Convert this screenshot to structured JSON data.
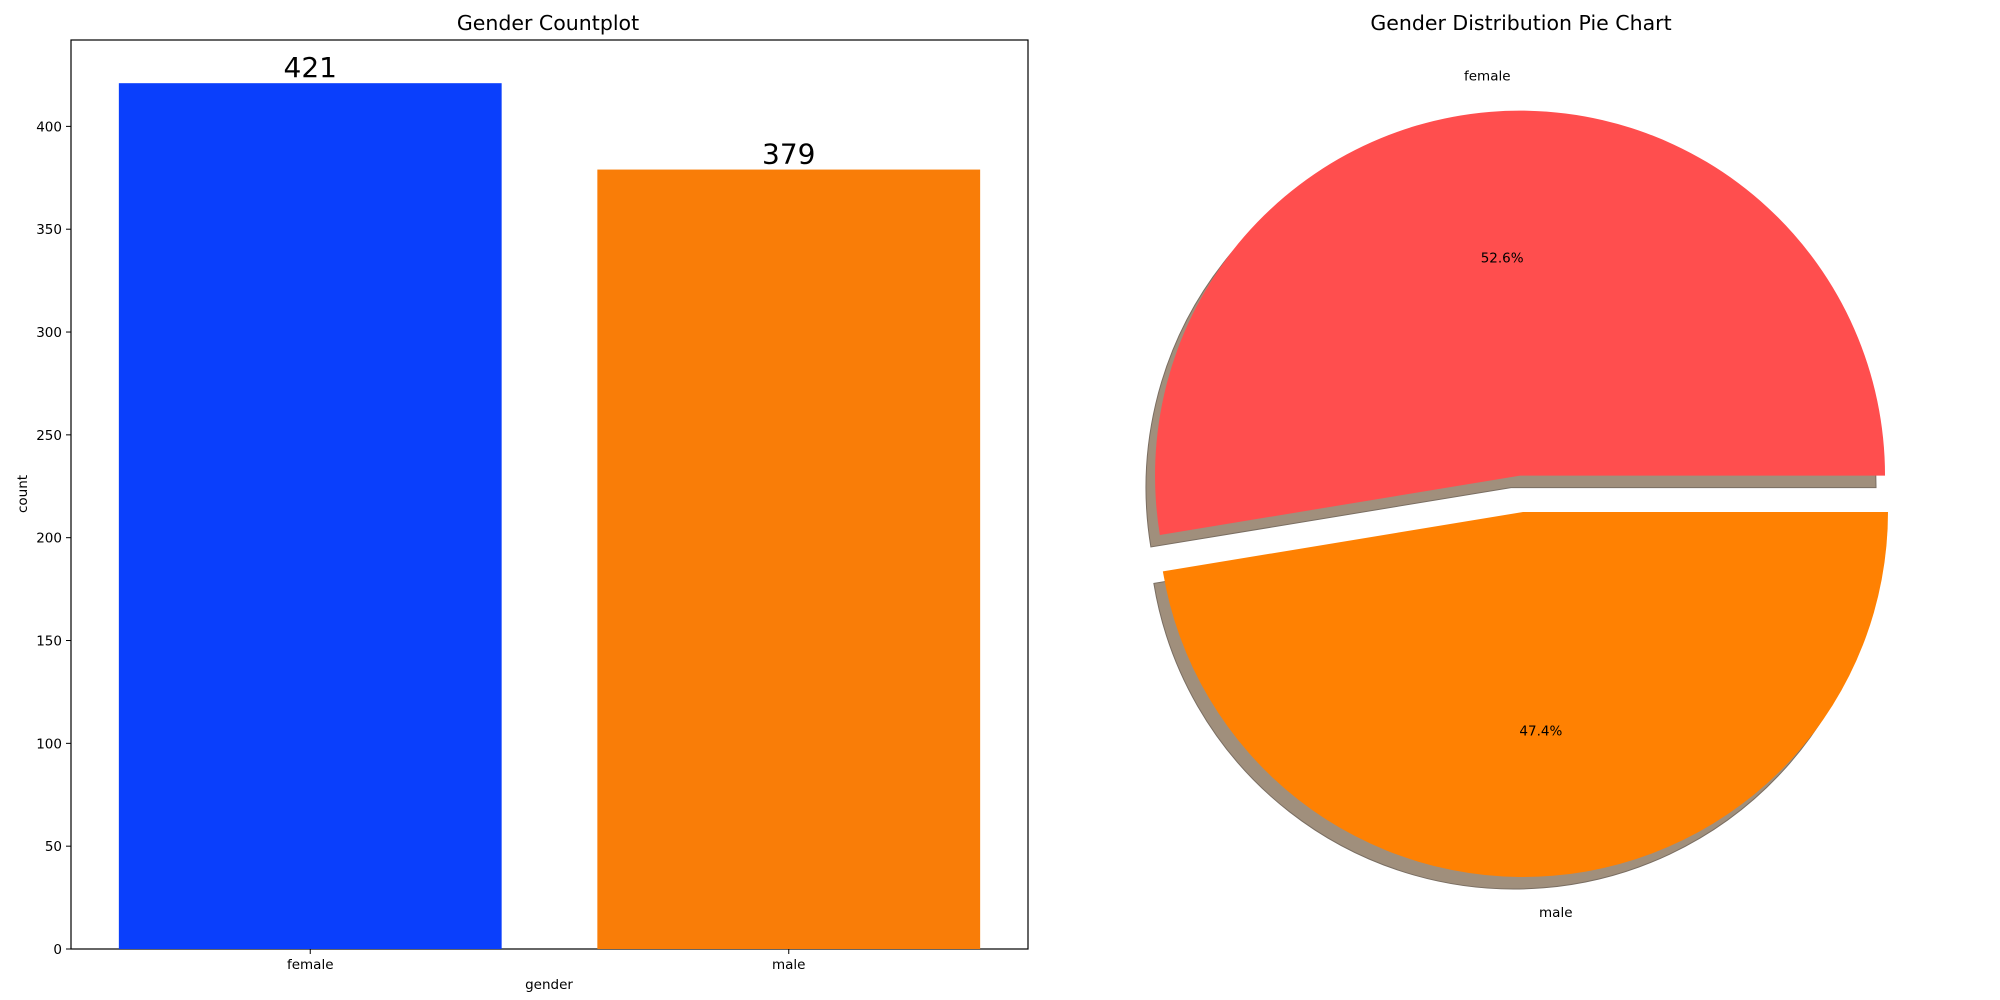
{
  "chart_data": [
    {
      "type": "bar",
      "title": "Gender Countplot",
      "xlabel": "gender",
      "ylabel": "count",
      "categories": [
        "female",
        "male"
      ],
      "values": [
        421,
        379
      ],
      "value_labels": [
        "421",
        "379"
      ],
      "colors": [
        "#0a3ffc",
        "#f97d08"
      ],
      "ylim": [
        0,
        442
      ],
      "yticks": [
        0,
        50,
        100,
        150,
        200,
        250,
        300,
        350,
        400
      ],
      "ytick_labels": [
        "0",
        "50",
        "100",
        "150",
        "200",
        "250",
        "300",
        "350",
        "400"
      ],
      "grid": false
    },
    {
      "type": "pie",
      "title": "Gender Distribution Pie Chart",
      "labels": [
        "female",
        "male"
      ],
      "values": [
        52.6,
        47.4
      ],
      "pct_labels": [
        "52.6%",
        "47.4%"
      ],
      "colors": [
        "#ff4e4e",
        "#ff8102"
      ],
      "explode": [
        0.1,
        0
      ],
      "shadow": true
    }
  ]
}
